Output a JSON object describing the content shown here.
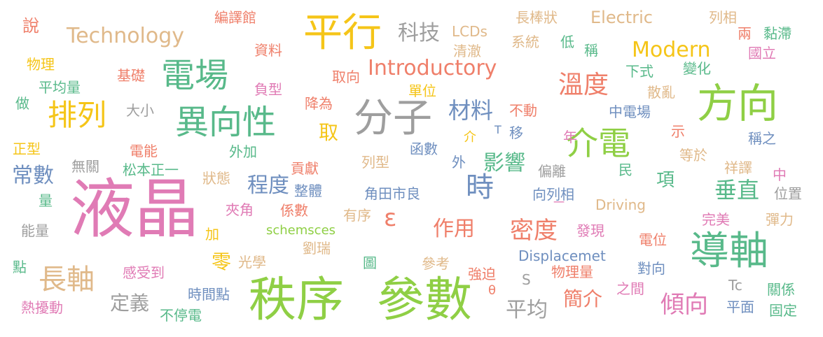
{
  "colors": {
    "orange": "#f28e2b",
    "yellow": "#f5c518",
    "green": "#8fcf45",
    "teal": "#58b98a",
    "blue": "#6f8fbf",
    "gray": "#9e9e9e",
    "salmon": "#ef7f6a",
    "pink": "#e07bb5",
    "tan": "#e0b98a"
  },
  "words": [
    {
      "text": "液晶",
      "color": "pink"
    },
    {
      "text": "秩序",
      "color": "green"
    },
    {
      "text": "參數",
      "color": "green"
    },
    {
      "text": "平行",
      "color": "yellow"
    },
    {
      "text": "方向",
      "color": "green"
    },
    {
      "text": "導軸",
      "color": "teal"
    },
    {
      "text": "電場",
      "color": "teal"
    },
    {
      "text": "異向性",
      "color": "teal"
    },
    {
      "text": "分子",
      "color": "gray"
    },
    {
      "text": "排列",
      "color": "yellow"
    },
    {
      "text": "介電",
      "color": "green"
    },
    {
      "text": "時",
      "color": "blue"
    },
    {
      "text": "長軸",
      "color": "tan"
    },
    {
      "text": "Technology",
      "color": "tan"
    },
    {
      "text": "Introductory",
      "color": "salmon"
    },
    {
      "text": "Modern",
      "color": "yellow"
    },
    {
      "text": "溫度",
      "color": "salmon"
    },
    {
      "text": "科技",
      "color": "gray"
    },
    {
      "text": "傾向",
      "color": "pink"
    },
    {
      "text": "零",
      "color": "yellow"
    },
    {
      "text": "密度",
      "color": "salmon"
    },
    {
      "text": "作用",
      "color": "salmon"
    },
    {
      "text": "垂直",
      "color": "teal"
    },
    {
      "text": "常數",
      "color": "blue"
    },
    {
      "text": "材料",
      "color": "blue"
    },
    {
      "text": "影響",
      "color": "teal"
    },
    {
      "text": "程度",
      "color": "blue"
    },
    {
      "text": "ε",
      "color": "salmon"
    },
    {
      "text": "取",
      "color": "yellow"
    },
    {
      "text": "項",
      "color": "teal"
    },
    {
      "text": "平均",
      "color": "gray"
    },
    {
      "text": "簡介",
      "color": "salmon"
    },
    {
      "text": "定義",
      "color": "gray"
    },
    {
      "text": "說",
      "color": "salmon"
    },
    {
      "text": "Electric",
      "color": "tan"
    },
    {
      "text": "列相",
      "color": "tan"
    },
    {
      "text": "長棒狀",
      "color": "tan"
    },
    {
      "text": "編譯館",
      "color": "salmon"
    },
    {
      "text": "LCDs",
      "color": "tan"
    },
    {
      "text": "兩",
      "color": "salmon"
    },
    {
      "text": "黏滯",
      "color": "teal"
    },
    {
      "text": "國立",
      "color": "pink"
    },
    {
      "text": "清澈",
      "color": "tan"
    },
    {
      "text": "系統",
      "color": "tan"
    },
    {
      "text": "低",
      "color": "teal"
    },
    {
      "text": "稱",
      "color": "teal"
    },
    {
      "text": "資料",
      "color": "salmon"
    },
    {
      "text": "物理",
      "color": "yellow"
    },
    {
      "text": "基礎",
      "color": "salmon"
    },
    {
      "text": "平均量",
      "color": "teal"
    },
    {
      "text": "取向",
      "color": "salmon"
    },
    {
      "text": "負型",
      "color": "pink"
    },
    {
      "text": "單位",
      "color": "yellow"
    },
    {
      "text": "下式",
      "color": "teal"
    },
    {
      "text": "變化",
      "color": "teal"
    },
    {
      "text": "散亂",
      "color": "tan"
    },
    {
      "text": "做",
      "color": "teal"
    },
    {
      "text": "大小",
      "color": "gray"
    },
    {
      "text": "降為",
      "color": "salmon"
    },
    {
      "text": "不動",
      "color": "salmon"
    },
    {
      "text": "中電場",
      "color": "blue"
    },
    {
      "text": "示",
      "color": "salmon"
    },
    {
      "text": "介",
      "color": "yellow"
    },
    {
      "text": "T",
      "color": "blue"
    },
    {
      "text": "移",
      "color": "blue"
    },
    {
      "text": "年",
      "color": "pink"
    },
    {
      "text": "稱之",
      "color": "blue"
    },
    {
      "text": "正型",
      "color": "yellow"
    },
    {
      "text": "電能",
      "color": "salmon"
    },
    {
      "text": "外加",
      "color": "teal"
    },
    {
      "text": "函數",
      "color": "blue"
    },
    {
      "text": "等於",
      "color": "tan"
    },
    {
      "text": "祥譯",
      "color": "tan"
    },
    {
      "text": "無關",
      "color": "gray"
    },
    {
      "text": "松本正一",
      "color": "teal"
    },
    {
      "text": "貢獻",
      "color": "salmon"
    },
    {
      "text": "列型",
      "color": "tan"
    },
    {
      "text": "外",
      "color": "blue"
    },
    {
      "text": "偏離",
      "color": "gray"
    },
    {
      "text": "民",
      "color": "teal"
    },
    {
      "text": "中",
      "color": "pink"
    },
    {
      "text": "量",
      "color": "teal"
    },
    {
      "text": "狀態",
      "color": "tan"
    },
    {
      "text": "整體",
      "color": "blue"
    },
    {
      "text": "角田市良",
      "color": "blue"
    },
    {
      "text": "向列相",
      "color": "blue"
    },
    {
      "text": "位置",
      "color": "gray"
    },
    {
      "text": "Driving",
      "color": "tan"
    },
    {
      "text": "一",
      "color": "pink"
    },
    {
      "text": "夾角",
      "color": "pink"
    },
    {
      "text": "係數",
      "color": "salmon"
    },
    {
      "text": "有序",
      "color": "tan"
    },
    {
      "text": "完美",
      "color": "pink"
    },
    {
      "text": "彈力",
      "color": "tan"
    },
    {
      "text": "能量",
      "color": "gray"
    },
    {
      "text": "加",
      "color": "yellow"
    },
    {
      "text": "schemsces",
      "color": "green"
    },
    {
      "text": "發現",
      "color": "pink"
    },
    {
      "text": "劉瑞",
      "color": "tan"
    },
    {
      "text": "電位",
      "color": "salmon"
    },
    {
      "text": "光學",
      "color": "tan"
    },
    {
      "text": "Displacemet",
      "color": "blue"
    },
    {
      "text": "點",
      "color": "teal"
    },
    {
      "text": "圖",
      "color": "teal"
    },
    {
      "text": "參考",
      "color": "tan"
    },
    {
      "text": "物理量",
      "color": "salmon"
    },
    {
      "text": "對向",
      "color": "blue"
    },
    {
      "text": "感受到",
      "color": "pink"
    },
    {
      "text": "強迫",
      "color": "salmon"
    },
    {
      "text": "S",
      "color": "gray"
    },
    {
      "text": "θ",
      "color": "salmon"
    },
    {
      "text": "Tc",
      "color": "gray"
    },
    {
      "text": "關係",
      "color": "teal"
    },
    {
      "text": "時間點",
      "color": "blue"
    },
    {
      "text": "之間",
      "color": "pink"
    },
    {
      "text": "熱擾動",
      "color": "pink"
    },
    {
      "text": "不停電",
      "color": "teal"
    },
    {
      "text": "平面",
      "color": "blue"
    },
    {
      "text": "固定",
      "color": "teal"
    }
  ]
}
